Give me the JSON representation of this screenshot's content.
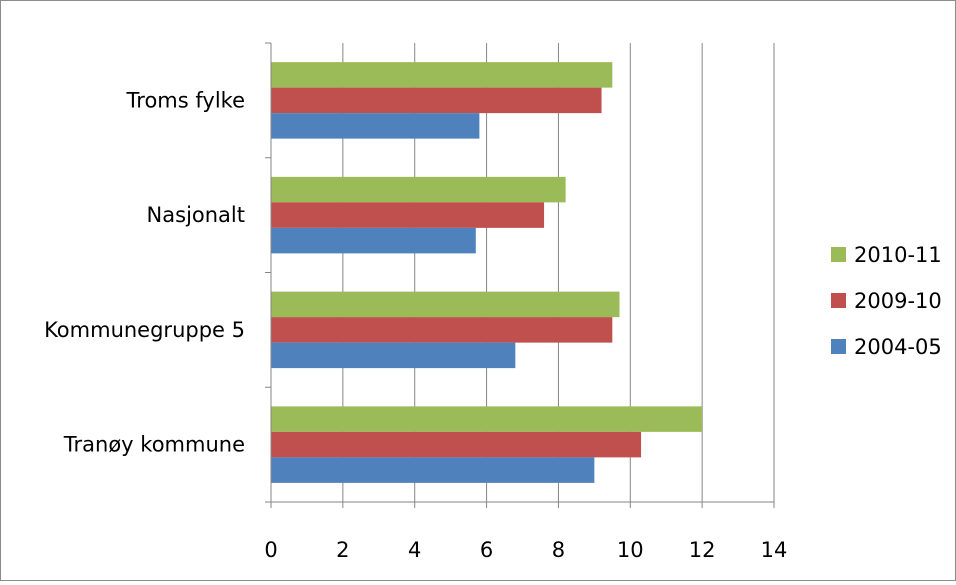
{
  "chart_data": {
    "type": "bar",
    "orientation": "horizontal",
    "title": "",
    "xlabel": "",
    "ylabel": "",
    "categories": [
      "Troms fylke",
      "Nasjonalt",
      "Kommunegruppe 5",
      "Tranøy kommune"
    ],
    "series": [
      {
        "name": "2010-11",
        "color": "#9bbb59",
        "values": [
          9.5,
          8.2,
          9.7,
          12.0
        ]
      },
      {
        "name": "2009-10",
        "color": "#c0504d",
        "values": [
          9.2,
          7.6,
          9.5,
          10.3
        ]
      },
      {
        "name": "2004-05",
        "color": "#4f81bd",
        "values": [
          5.8,
          5.7,
          6.8,
          9.0
        ]
      }
    ],
    "xlim": [
      0,
      14
    ],
    "xticks": [
      "0",
      "2",
      "4",
      "6",
      "8",
      "10",
      "12",
      "14"
    ],
    "grid": "vertical major gridlines",
    "legend_position": "right"
  }
}
